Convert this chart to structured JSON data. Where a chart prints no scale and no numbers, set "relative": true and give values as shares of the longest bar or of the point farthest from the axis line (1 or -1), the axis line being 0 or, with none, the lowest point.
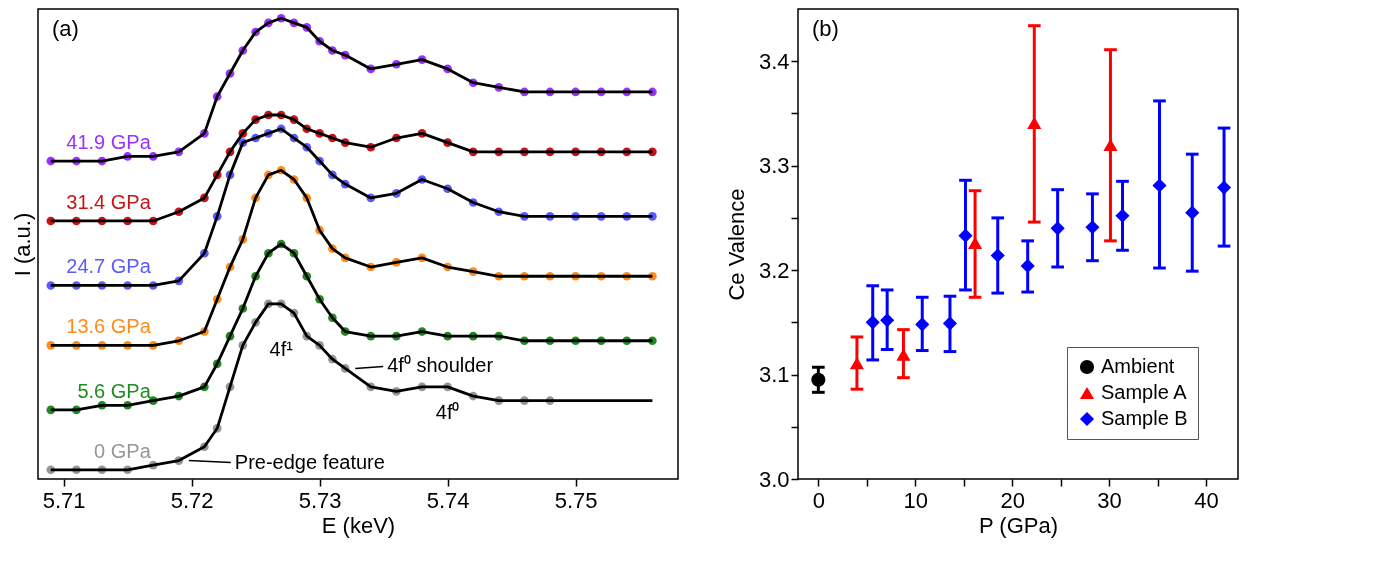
{
  "chart_data": [
    {
      "type": "line",
      "relative": true,
      "xlabel": "E (keV)",
      "ylabel": "I (a.u.)",
      "tick_labels": "x",
      "legend": false,
      "xlim": [
        5.708,
        5.758
      ],
      "xticks": [
        5.71,
        5.72,
        5.73,
        5.74,
        5.75
      ],
      "x": [
        5.709,
        5.711,
        5.713,
        5.715,
        5.717,
        5.719,
        5.721,
        5.722,
        5.723,
        5.724,
        5.725,
        5.726,
        5.727,
        5.728,
        5.729,
        5.73,
        5.731,
        5.732,
        5.734,
        5.736,
        5.738,
        5.74,
        5.742,
        5.744,
        5.746,
        5.748,
        5.75,
        5.752,
        5.754,
        5.756
      ],
      "series": [
        {
          "type": "scatter",
          "marker": "circle",
          "name": "41.9 GPa",
          "color": "#9b30ff",
          "values": [
            0.69,
            0.69,
            0.69,
            0.7,
            0.7,
            0.71,
            0.75,
            0.83,
            0.88,
            0.93,
            0.97,
            0.99,
            1,
            0.99,
            0.98,
            0.95,
            0.93,
            0.92,
            0.89,
            0.9,
            0.91,
            0.89,
            0.86,
            0.85,
            0.84,
            0.84,
            0.84,
            0.84,
            0.84,
            0.84
          ]
        },
        {
          "type": "scatter",
          "marker": "circle",
          "name": "31.4 GPa",
          "color": "#c81414",
          "values": [
            0.56,
            0.56,
            0.56,
            0.56,
            0.56,
            0.58,
            0.61,
            0.66,
            0.71,
            0.75,
            0.78,
            0.79,
            0.79,
            0.78,
            0.76,
            0.75,
            0.74,
            0.73,
            0.72,
            0.74,
            0.75,
            0.73,
            0.71,
            0.71,
            0.71,
            0.71,
            0.71,
            0.71,
            0.71,
            0.71
          ]
        },
        {
          "type": "scatter",
          "marker": "circle",
          "name": "24.7 GPa",
          "color": "#5a5aff",
          "values": [
            0.42,
            0.42,
            0.42,
            0.42,
            0.42,
            0.43,
            0.49,
            0.57,
            0.66,
            0.73,
            0.74,
            0.75,
            0.76,
            0.74,
            0.72,
            0.69,
            0.66,
            0.64,
            0.61,
            0.62,
            0.65,
            0.63,
            0.6,
            0.58,
            0.57,
            0.57,
            0.57,
            0.57,
            0.57,
            0.57
          ]
        },
        {
          "type": "scatter",
          "marker": "circle",
          "name": "13.6 GPa",
          "color": "#ff8c1a",
          "values": [
            0.29,
            0.29,
            0.29,
            0.29,
            0.29,
            0.3,
            0.32,
            0.39,
            0.46,
            0.52,
            0.61,
            0.66,
            0.67,
            0.65,
            0.61,
            0.54,
            0.5,
            0.48,
            0.46,
            0.47,
            0.48,
            0.46,
            0.45,
            0.44,
            0.44,
            0.44,
            0.44,
            0.44,
            0.44,
            0.44
          ]
        },
        {
          "type": "scatter",
          "marker": "circle",
          "name": "5.6 GPa",
          "color": "#1e8c1e",
          "values": [
            0.15,
            0.15,
            0.16,
            0.16,
            0.17,
            0.18,
            0.2,
            0.25,
            0.31,
            0.37,
            0.44,
            0.49,
            0.51,
            0.49,
            0.44,
            0.39,
            0.35,
            0.32,
            0.31,
            0.31,
            0.32,
            0.31,
            0.31,
            0.31,
            0.3,
            0.3,
            0.3,
            0.3,
            0.3,
            0.3
          ]
        },
        {
          "type": "scatter",
          "marker": "circle",
          "name": "0 GPa",
          "color": "#969696",
          "values": [
            0.02,
            0.02,
            0.02,
            0.02,
            0.03,
            0.04,
            0.07,
            0.11,
            0.2,
            0.29,
            0.34,
            0.38,
            0.38,
            0.36,
            0.31,
            0.29,
            0.26,
            0.24,
            0.2,
            0.19,
            0.2,
            0.2,
            0.18,
            0.17,
            0.17,
            0.17,
            null,
            null,
            null,
            null
          ]
        },
        {
          "color": "#000000",
          "values": [
            0.69,
            0.69,
            0.69,
            0.7,
            0.7,
            0.71,
            0.75,
            0.83,
            0.88,
            0.93,
            0.97,
            0.99,
            1,
            0.99,
            0.98,
            0.95,
            0.93,
            0.92,
            0.89,
            0.9,
            0.91,
            0.89,
            0.86,
            0.85,
            0.84,
            0.84,
            0.84,
            0.84,
            0.84,
            0.84
          ]
        },
        {
          "color": "#000000",
          "values": [
            0.56,
            0.56,
            0.56,
            0.56,
            0.56,
            0.58,
            0.61,
            0.66,
            0.71,
            0.75,
            0.78,
            0.79,
            0.79,
            0.78,
            0.76,
            0.75,
            0.74,
            0.73,
            0.72,
            0.74,
            0.75,
            0.73,
            0.71,
            0.71,
            0.71,
            0.71,
            0.71,
            0.71,
            0.71,
            0.71
          ]
        },
        {
          "color": "#000000",
          "values": [
            0.42,
            0.42,
            0.42,
            0.42,
            0.42,
            0.43,
            0.49,
            0.57,
            0.66,
            0.73,
            0.74,
            0.75,
            0.76,
            0.74,
            0.72,
            0.69,
            0.66,
            0.64,
            0.61,
            0.62,
            0.65,
            0.63,
            0.6,
            0.58,
            0.57,
            0.57,
            0.57,
            0.57,
            0.57,
            0.57
          ]
        },
        {
          "color": "#000000",
          "values": [
            0.29,
            0.29,
            0.29,
            0.29,
            0.29,
            0.3,
            0.32,
            0.39,
            0.46,
            0.52,
            0.61,
            0.66,
            0.67,
            0.65,
            0.61,
            0.54,
            0.5,
            0.48,
            0.46,
            0.47,
            0.48,
            0.46,
            0.45,
            0.44,
            0.44,
            0.44,
            0.44,
            0.44,
            0.44,
            0.44
          ]
        },
        {
          "color": "#000000",
          "values": [
            0.15,
            0.15,
            0.16,
            0.16,
            0.17,
            0.18,
            0.2,
            0.25,
            0.31,
            0.37,
            0.44,
            0.49,
            0.51,
            0.49,
            0.44,
            0.39,
            0.35,
            0.32,
            0.31,
            0.31,
            0.32,
            0.31,
            0.31,
            0.31,
            0.3,
            0.3,
            0.3,
            0.3,
            0.3,
            0.3
          ]
        },
        {
          "color": "#000000",
          "values": [
            0.02,
            0.02,
            0.02,
            0.02,
            0.03,
            0.04,
            0.07,
            0.11,
            0.2,
            0.29,
            0.34,
            0.38,
            0.38,
            0.36,
            0.31,
            0.29,
            0.26,
            0.24,
            0.2,
            0.19,
            0.2,
            0.2,
            0.18,
            0.17,
            0.17,
            0.17,
            0.17,
            0.17,
            0.17,
            0.17
          ]
        }
      ],
      "annotations": [
        "(a)",
        {
          "text": "4f¹",
          "x": 5.727,
          "y": 0.38
        },
        {
          "text": "4f⁰",
          "x": 5.74,
          "y": 0.2
        },
        {
          "text": "4f⁰ shoulder",
          "x": 5.732,
          "y": 0.24
        },
        {
          "text": "Pre-edge feature",
          "x": 5.719,
          "y": 0.04
        }
      ]
    },
    {
      "type": "scatter",
      "xlabel": "P (GPa)",
      "ylabel": "Ce Valence",
      "legend": "bottom right",
      "xlim": [
        -2.1,
        43.3
      ],
      "ylim": [
        3.0,
        3.45
      ],
      "xticks": [
        0,
        {
          "value": 5,
          "label": null
        },
        10,
        {
          "value": 15,
          "label": null
        },
        20,
        {
          "value": 25,
          "label": null
        },
        30,
        {
          "value": 35,
          "label": null
        },
        40
      ],
      "yticks": [
        {
          "value": 3,
          "label": "3.0"
        },
        {
          "value": 3.05,
          "label": null
        },
        3.1,
        {
          "value": 3.15,
          "label": null
        },
        3.2,
        {
          "value": 3.25,
          "label": null
        },
        3.3,
        {
          "value": 3.35,
          "label": null
        },
        3.4
      ],
      "series": [
        {
          "name": "Ambient",
          "color": "#000000",
          "marker": "circle",
          "x": [
            0
          ],
          "values": [
            3.095
          ],
          "errors": [
            [
              3.083,
              3.107
            ]
          ]
        },
        {
          "name": "Sample A",
          "color": "#ff0000",
          "marker": "triangle",
          "x": [
            3.98,
            8.78,
            16.17,
            22.28,
            30.14
          ],
          "values": [
            3.111,
            3.119,
            3.226,
            3.341,
            3.32
          ],
          "errors": [
            [
              3.086,
              3.136
            ],
            [
              3.097,
              3.143
            ],
            [
              3.174,
              3.276
            ],
            [
              3.246,
              3.434
            ],
            [
              3.228,
              3.411
            ]
          ]
        },
        {
          "name": "Sample B",
          "color": "#0000ff",
          "marker": "diamond",
          "x": [
            5.61,
            7.1,
            10.72,
            13.58,
            15.18,
            18.51,
            21.6,
            24.69,
            28.28,
            31.38,
            35.2,
            38.58,
            41.86
          ],
          "values": [
            3.15,
            3.152,
            3.148,
            3.149,
            3.233,
            3.214,
            3.204,
            3.24,
            3.241,
            3.252,
            3.281,
            3.255,
            3.279
          ],
          "errors": [
            [
              3.114,
              3.185
            ],
            [
              3.124,
              3.181
            ],
            [
              3.123,
              3.174
            ],
            [
              3.122,
              3.175
            ],
            [
              3.181,
              3.286
            ],
            [
              3.178,
              3.25
            ],
            [
              3.179,
              3.228
            ],
            [
              3.203,
              3.277
            ],
            [
              3.209,
              3.273
            ],
            [
              3.219,
              3.285
            ],
            [
              3.202,
              3.362
            ],
            [
              3.199,
              3.311
            ],
            [
              3.223,
              3.336
            ]
          ]
        }
      ],
      "annotations": [
        "(b)"
      ]
    }
  ]
}
